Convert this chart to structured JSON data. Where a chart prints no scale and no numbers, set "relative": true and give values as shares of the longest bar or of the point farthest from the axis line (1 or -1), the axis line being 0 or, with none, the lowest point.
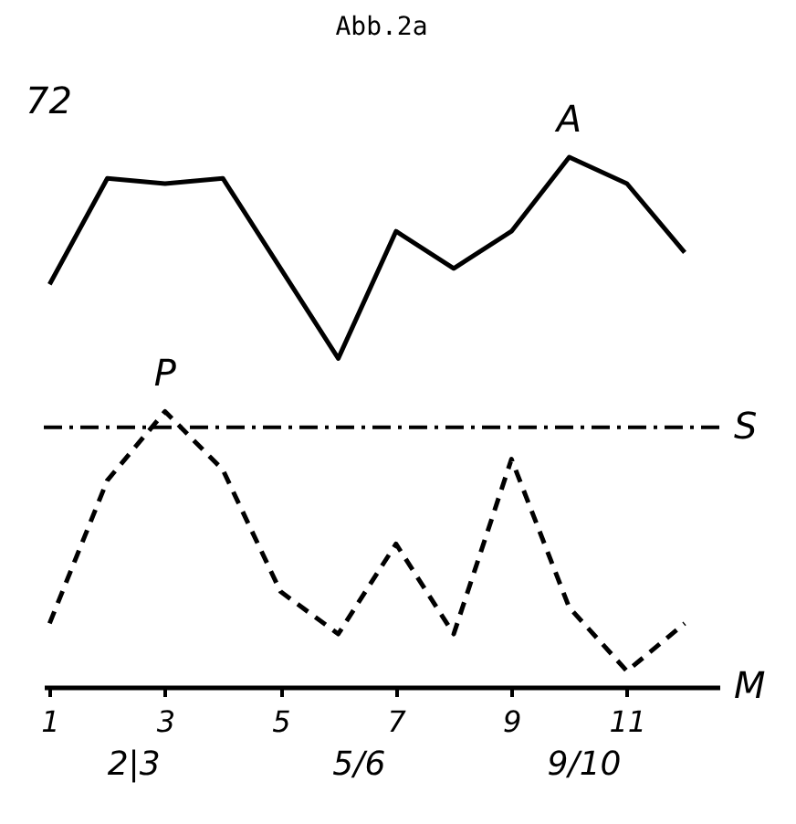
{
  "chart_data": {
    "type": "line",
    "title": "Abb.2a",
    "relative": true,
    "series": [
      {
        "name": "A",
        "color": "#000000",
        "line_style": "solid",
        "x": [
          1,
          2,
          3,
          4,
          6,
          7,
          8,
          9,
          10,
          11,
          12
        ],
        "values": [
          0.76,
          0.96,
          0.95,
          0.96,
          0.62,
          0.86,
          0.79,
          0.86,
          1.0,
          0.95,
          0.82
        ]
      },
      {
        "name": "P",
        "color": "#000000",
        "line_style": "dashed",
        "x": [
          1,
          2,
          3,
          4,
          5,
          6,
          7,
          8,
          9,
          10,
          11,
          12
        ],
        "values": [
          0.12,
          0.39,
          0.52,
          0.41,
          0.18,
          0.1,
          0.27,
          0.1,
          0.43,
          0.15,
          0.03,
          0.12
        ]
      }
    ],
    "xlim": [
      0.9,
      12.6
    ],
    "xticks": [
      1,
      3,
      5,
      7,
      9,
      11
    ],
    "ref_lines": [
      {
        "axis": "y",
        "value": 0.49,
        "label": "S",
        "line_style": "dashdot",
        "color": "#000000"
      }
    ],
    "annotations": [
      "72",
      "2|3",
      "5/6",
      "9/10",
      "M"
    ],
    "grid": false,
    "marker": "none",
    "tick_labels": "x"
  }
}
